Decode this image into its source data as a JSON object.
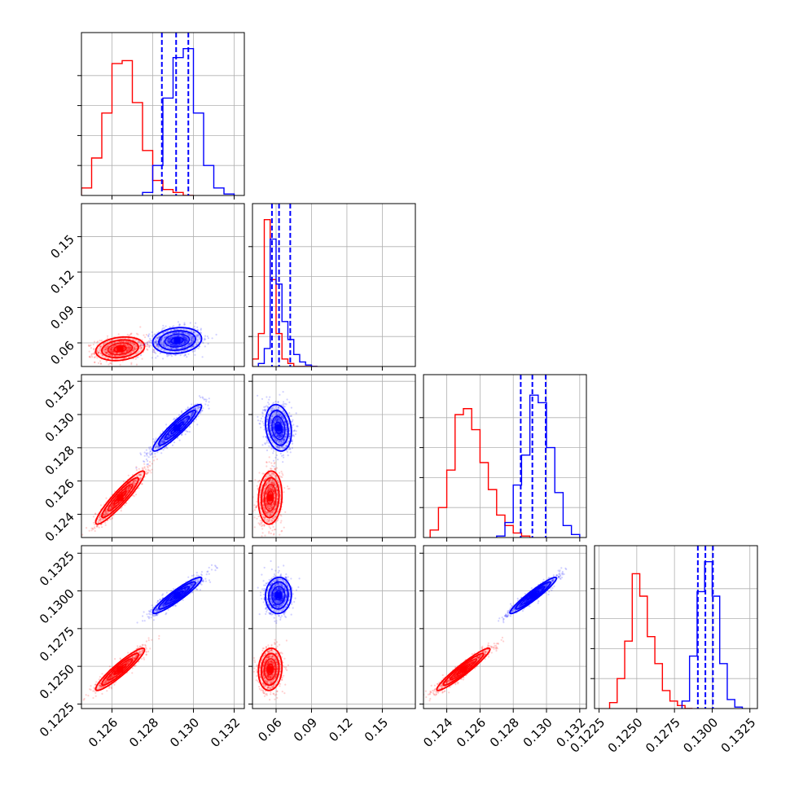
{
  "chart_data": {
    "type": "corner",
    "grid": true,
    "colors": {
      "red_chain": "#ff0000",
      "blue_chain": "#0000ff"
    },
    "parameters": [
      {
        "index": 0,
        "range": [
          0.1245,
          0.1325
        ],
        "ticks": [
          0.126,
          0.128,
          0.13,
          0.132
        ],
        "tick_labels": [
          "0.126",
          "0.128",
          "0.130",
          "0.132"
        ]
      },
      {
        "index": 1,
        "range": [
          0.04,
          0.178
        ],
        "ticks": [
          0.06,
          0.09,
          0.12,
          0.15
        ],
        "tick_labels": [
          "0.06",
          "0.09",
          "0.12",
          "0.15"
        ]
      },
      {
        "index": 2,
        "range": [
          0.1226,
          0.1324
        ],
        "ticks": [
          0.124,
          0.126,
          0.128,
          0.13,
          0.132
        ],
        "tick_labels": [
          "0.124",
          "0.126",
          "0.128",
          "0.130",
          "0.132"
        ]
      },
      {
        "index": 3,
        "range": [
          0.1222,
          0.133
        ],
        "ticks": [
          0.1225,
          0.125,
          0.1275,
          0.13,
          0.1325
        ],
        "tick_labels": [
          "0.1225",
          "0.1250",
          "0.1275",
          "0.1300",
          "0.1325"
        ]
      }
    ],
    "series": [
      {
        "color": "red",
        "means": [
          0.1264,
          0.055,
          0.125,
          0.1248
        ],
        "sigmas": [
          0.0006,
          0.005,
          0.0008,
          0.0007
        ],
        "correlations": {
          "0-1": 0.2,
          "0-2": 0.93,
          "0-3": 0.93,
          "1-2": 0.1,
          "1-3": 0.1,
          "2-3": 0.95
        },
        "histograms": [
          {
            "edges": [
              0.1245,
              0.125,
              0.1255,
              0.126,
              0.1265,
              0.127,
              0.1275,
              0.128,
              0.1285,
              0.129,
              0.1295,
              0.13
            ],
            "counts": [
              0.05,
              0.25,
              0.55,
              0.88,
              0.9,
              0.62,
              0.3,
              0.1,
              0.04,
              0.02,
              0.0
            ]
          },
          {
            "edges": [
              0.04,
              0.045,
              0.05,
              0.055,
              0.06,
              0.065,
              0.07,
              0.075,
              0.08,
              0.085,
              0.09,
              0.095
            ],
            "counts": [
              0.05,
              0.22,
              0.98,
              0.58,
              0.22,
              0.05,
              0.02,
              0.0,
              0.0,
              0.0,
              0.0
            ]
          },
          {
            "edges": [
              0.123,
              0.1235,
              0.124,
              0.1245,
              0.125,
              0.1255,
              0.126,
              0.1265,
              0.127,
              0.1275,
              0.128,
              0.1285,
              0.129
            ],
            "counts": [
              0.05,
              0.2,
              0.45,
              0.82,
              0.86,
              0.72,
              0.5,
              0.32,
              0.15,
              0.08,
              0.03,
              0.01
            ]
          },
          {
            "edges": [
              0.1232,
              0.1237,
              0.1242,
              0.1247,
              0.1252,
              0.1257,
              0.1262,
              0.1267,
              0.1272,
              0.1277,
              0.1282,
              0.1287
            ],
            "counts": [
              0.04,
              0.2,
              0.45,
              0.9,
              0.75,
              0.48,
              0.3,
              0.12,
              0.05,
              0.02,
              0.0
            ]
          }
        ]
      },
      {
        "color": "blue",
        "means": [
          0.1292,
          0.062,
          0.1292,
          0.1297
        ],
        "sigmas": [
          0.0006,
          0.0055,
          0.0007,
          0.0006
        ],
        "correlations": {
          "0-1": 0.15,
          "0-2": 0.93,
          "0-3": 0.93,
          "1-2": -0.2,
          "1-3": 0.05,
          "2-3": 0.95
        },
        "quantiles": [
          [
            0.12845,
            0.12915,
            0.12975
          ],
          [
            0.0565,
            0.0625,
            0.072
          ],
          [
            0.12845,
            0.12915,
            0.12995
          ],
          [
            0.12905,
            0.12955,
            0.13005
          ]
        ],
        "histograms": [
          {
            "edges": [
              0.1275,
              0.128,
              0.1285,
              0.129,
              0.1295,
              0.13,
              0.1305,
              0.131,
              0.1315,
              0.132
            ],
            "counts": [
              0.02,
              0.2,
              0.65,
              0.92,
              0.98,
              0.55,
              0.2,
              0.05,
              0.01
            ]
          },
          {
            "edges": [
              0.045,
              0.05,
              0.055,
              0.06,
              0.065,
              0.07,
              0.075,
              0.08,
              0.085,
              0.09,
              0.095
            ],
            "counts": [
              0.02,
              0.12,
              0.85,
              0.55,
              0.3,
              0.18,
              0.08,
              0.03,
              0.01,
              0.0
            ]
          },
          {
            "edges": [
              0.127,
              0.1275,
              0.128,
              0.1285,
              0.129,
              0.1295,
              0.13,
              0.1305,
              0.131,
              0.1315,
              0.132
            ],
            "counts": [
              0.01,
              0.1,
              0.35,
              0.55,
              0.95,
              0.9,
              0.6,
              0.3,
              0.08,
              0.02
            ]
          },
          {
            "edges": [
              0.128,
              0.1285,
              0.129,
              0.1295,
              0.13,
              0.1305,
              0.131,
              0.1315,
              0.132
            ],
            "counts": [
              0.05,
              0.35,
              0.78,
              0.98,
              0.75,
              0.3,
              0.06,
              0.01
            ]
          }
        ]
      }
    ]
  }
}
